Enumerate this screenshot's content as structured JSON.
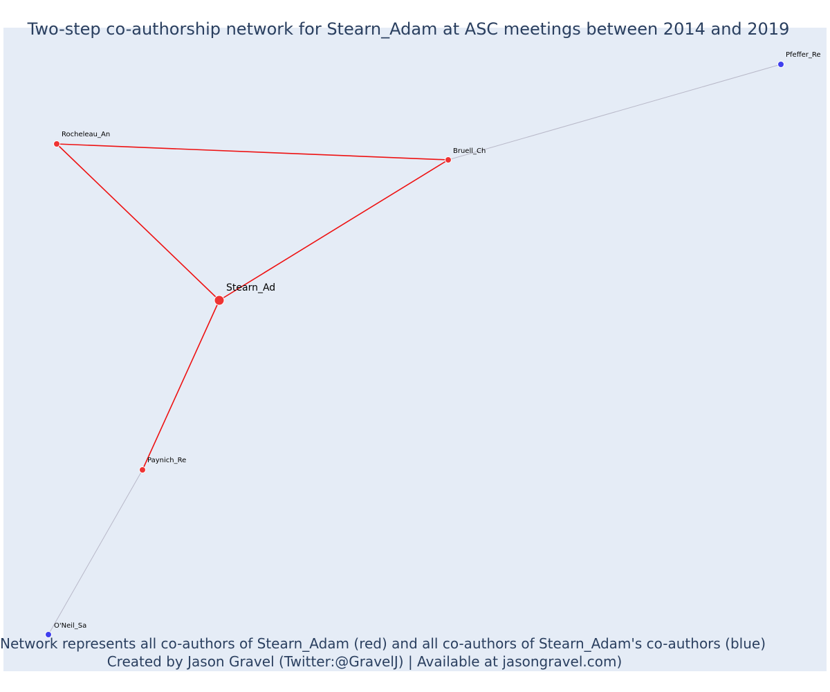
{
  "title": "Two-step co-authorship network for Stearn_Adam at ASC meetings between 2014 and 2019",
  "captions": {
    "line1": "Network represents all co-authors of Stearn_Adam (red) and all co-authors of Stearn_Adam's co-authors (blue)",
    "line2": "Created by Jason Gravel (Twitter:@GravelJ) | Available at jasongravel.com)"
  },
  "colors": {
    "background": "#e5ecf6",
    "direct_node": "#ee3333",
    "indirect_node": "#3f3fee",
    "direct_edge": "#ee1111",
    "indirect_edge": "#b8b8c8",
    "text": "#2a3f5f"
  },
  "network": {
    "nodes": [
      {
        "id": "Stearn_Ad",
        "label": "Stearn_Ad",
        "group": "focal"
      },
      {
        "id": "Rocheleau_An",
        "label": "Rocheleau_An",
        "group": "co-author"
      },
      {
        "id": "Bruell_Ch",
        "label": "Bruell_Ch",
        "group": "co-author"
      },
      {
        "id": "Paynich_Re",
        "label": "Paynich_Re",
        "group": "co-author"
      },
      {
        "id": "Pfeffer_Re",
        "label": "Pfeffer_Re",
        "group": "co-author-of-co-author"
      },
      {
        "id": "O'Neil_Sa",
        "label": "O'Neil_Sa",
        "group": "co-author-of-co-author"
      }
    ],
    "edges": [
      {
        "from": "Stearn_Ad",
        "to": "Rocheleau_An",
        "type": "direct"
      },
      {
        "from": "Stearn_Ad",
        "to": "Bruell_Ch",
        "type": "direct"
      },
      {
        "from": "Stearn_Ad",
        "to": "Paynich_Re",
        "type": "direct"
      },
      {
        "from": "Rocheleau_An",
        "to": "Bruell_Ch",
        "type": "direct"
      },
      {
        "from": "Bruell_Ch",
        "to": "Pfeffer_Re",
        "type": "indirect"
      },
      {
        "from": "Paynich_Re",
        "to": "O'Neil_Sa",
        "type": "indirect"
      }
    ]
  }
}
